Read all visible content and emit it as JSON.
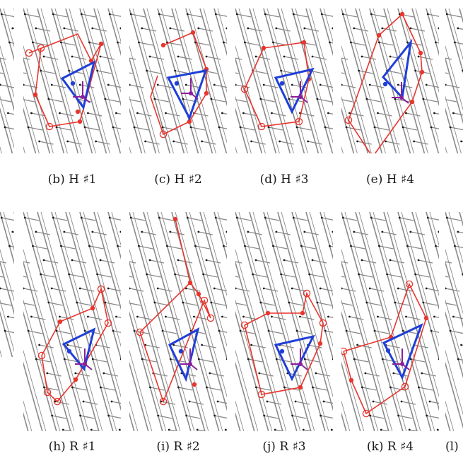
{
  "figure": {
    "rows": [
      {
        "captions": [
          "(b) H ♯1",
          "(c) H ♯2",
          "(d) H ♯3",
          "(e) H ♯4"
        ],
        "panels": [
          {
            "id": "b",
            "polygon": "hexagonal"
          },
          {
            "id": "c",
            "polygon": "hexagonal"
          },
          {
            "id": "d",
            "polygon": "hexagonal"
          },
          {
            "id": "e",
            "polygon": "hexagonal"
          }
        ]
      },
      {
        "captions": [
          "(h) R ♯1",
          "(i) R ♯2",
          "(j) R ♯3",
          "(k) R ♯4",
          "(l)"
        ],
        "panels": [
          {
            "id": "h",
            "polygon": "random"
          },
          {
            "id": "i",
            "polygon": "random"
          },
          {
            "id": "j",
            "polygon": "random"
          },
          {
            "id": "k",
            "polygon": "random"
          }
        ]
      }
    ],
    "colors": {
      "lattice": "#8a8a8a",
      "lattice_node": "#1a1a1a",
      "red_path": "#e8352e",
      "blue_triangle": "#1f3fd8",
      "purple_arrow": "#8a1f9a"
    }
  }
}
